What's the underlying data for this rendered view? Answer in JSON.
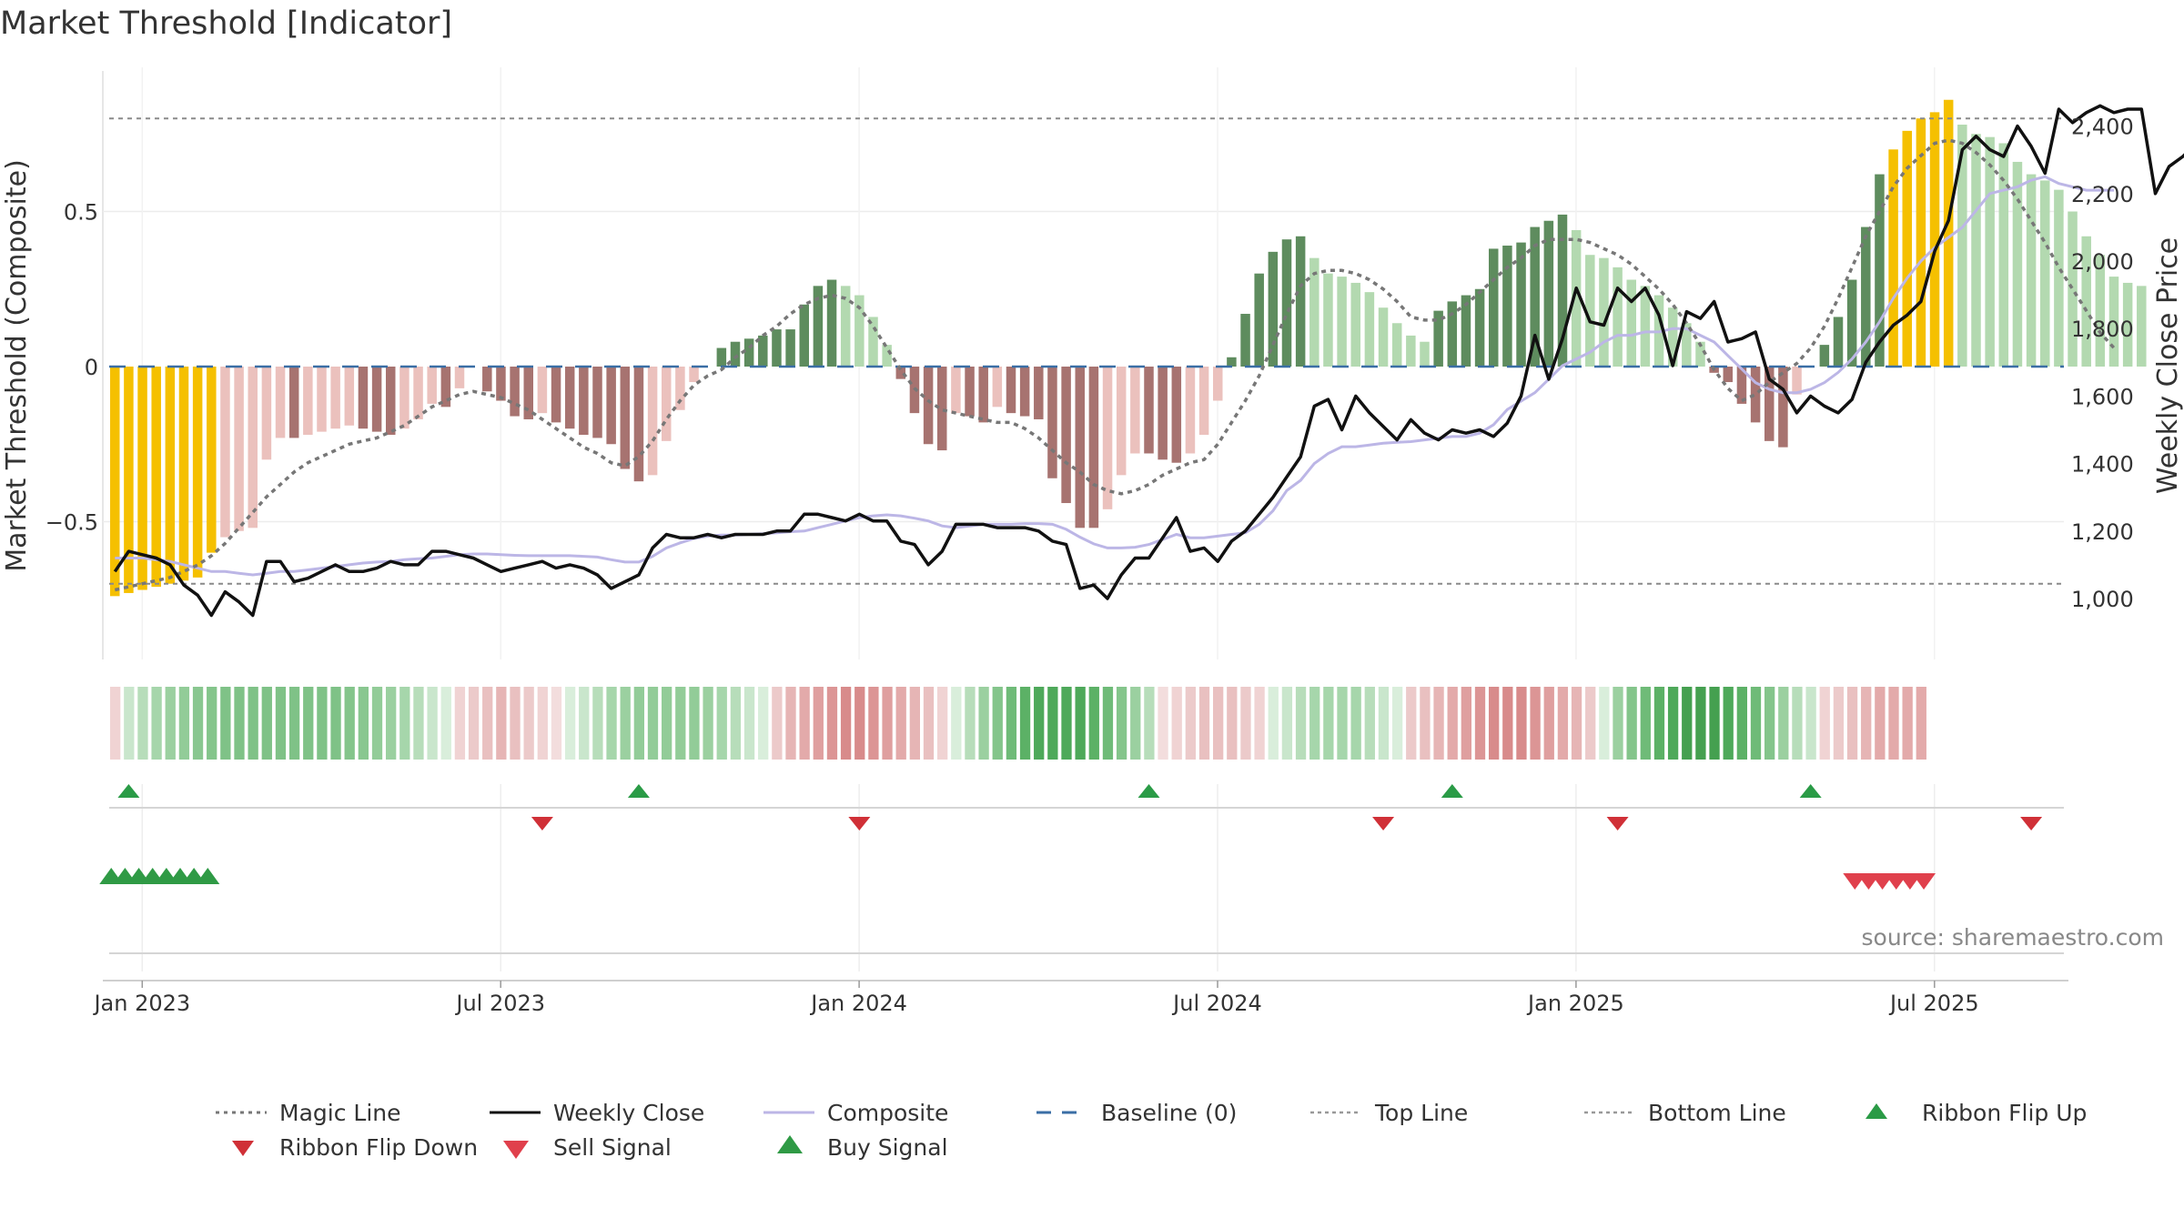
{
  "chart_data": {
    "type": "bar+line",
    "title": "Market Threshold [Indicator]",
    "left_axis": {
      "label": "Market Threshold (Composite)",
      "ticks": [
        "0.5",
        "0",
        "−0.5"
      ],
      "tick_values": [
        0.5,
        0,
        -0.5
      ],
      "range": [
        -0.95,
        0.95
      ]
    },
    "right_axis": {
      "label": "Weekly Close Price",
      "ticks": [
        "2,400",
        "2,200",
        "2,000",
        "1,800",
        "1,600",
        "1,400",
        "1,200",
        "1,000"
      ],
      "tick_values": [
        2400,
        2200,
        2000,
        1800,
        1600,
        1400,
        1200,
        1000
      ],
      "range": [
        840,
        2480
      ]
    },
    "x_ticks": [
      "Jan 2023",
      "Jul 2023",
      "Jan 2024",
      "Jul 2024",
      "Jan 2025",
      "Jul 2025"
    ],
    "x_tick_weeks": [
      2,
      28,
      54,
      80,
      106,
      132
    ],
    "lines": {
      "top": 0.8,
      "bottom": -0.7,
      "baseline": 0
    },
    "composite_bars": [
      -0.74,
      -0.73,
      -0.72,
      -0.71,
      -0.7,
      -0.69,
      -0.68,
      -0.6,
      -0.55,
      -0.53,
      -0.52,
      -0.3,
      -0.23,
      -0.23,
      -0.22,
      -0.21,
      -0.2,
      -0.19,
      -0.2,
      -0.21,
      -0.22,
      -0.2,
      -0.17,
      -0.12,
      -0.13,
      -0.07,
      0,
      -0.08,
      -0.11,
      -0.16,
      -0.17,
      -0.15,
      -0.18,
      -0.2,
      -0.22,
      -0.23,
      -0.25,
      -0.33,
      -0.37,
      -0.35,
      -0.24,
      -0.14,
      -0.05,
      0,
      0.06,
      0.08,
      0.09,
      0.1,
      0.12,
      0.12,
      0.2,
      0.26,
      0.28,
      0.26,
      0.23,
      0.16,
      0.07,
      -0.04,
      -0.15,
      -0.25,
      -0.27,
      -0.15,
      -0.16,
      -0.18,
      -0.13,
      -0.15,
      -0.16,
      -0.17,
      -0.36,
      -0.44,
      -0.52,
      -0.52,
      -0.46,
      -0.35,
      -0.28,
      -0.28,
      -0.3,
      -0.31,
      -0.28,
      -0.22,
      -0.11,
      0.03,
      0.17,
      0.3,
      0.37,
      0.41,
      0.42,
      0.35,
      0.3,
      0.29,
      0.27,
      0.24,
      0.19,
      0.14,
      0.1,
      0.08,
      0.18,
      0.21,
      0.23,
      0.25,
      0.38,
      0.39,
      0.4,
      0.45,
      0.47,
      0.49,
      0.44,
      0.36,
      0.35,
      0.32,
      0.28,
      0.26,
      0.23,
      0.19,
      0.14,
      0.08,
      -0.02,
      -0.05,
      -0.12,
      -0.18,
      -0.24,
      -0.26,
      -0.09,
      0,
      0.07,
      0.16,
      0.28,
      0.45,
      0.62,
      0.7,
      0.76,
      0.8,
      0.82,
      0.86,
      0.78,
      0.75,
      0.74,
      0.72,
      0.66,
      0.62,
      0.6,
      0.57,
      0.5,
      0.42,
      0.36,
      0.29,
      0.27,
      0.26
    ],
    "magic_line": [
      -0.72,
      -0.71,
      -0.7,
      -0.69,
      -0.68,
      -0.66,
      -0.64,
      -0.61,
      -0.57,
      -0.52,
      -0.47,
      -0.42,
      -0.38,
      -0.34,
      -0.31,
      -0.29,
      -0.27,
      -0.25,
      -0.24,
      -0.23,
      -0.21,
      -0.19,
      -0.16,
      -0.13,
      -0.11,
      -0.09,
      -0.08,
      -0.09,
      -0.1,
      -0.12,
      -0.14,
      -0.17,
      -0.2,
      -0.23,
      -0.26,
      -0.28,
      -0.31,
      -0.32,
      -0.29,
      -0.24,
      -0.17,
      -0.11,
      -0.06,
      -0.03,
      -0.01,
      0.03,
      0.06,
      0.1,
      0.13,
      0.17,
      0.2,
      0.22,
      0.23,
      0.22,
      0.19,
      0.13,
      0.06,
      -0.01,
      -0.07,
      -0.11,
      -0.14,
      -0.15,
      -0.16,
      -0.17,
      -0.18,
      -0.18,
      -0.2,
      -0.23,
      -0.27,
      -0.31,
      -0.34,
      -0.38,
      -0.4,
      -0.41,
      -0.4,
      -0.38,
      -0.35,
      -0.33,
      -0.31,
      -0.3,
      -0.25,
      -0.18,
      -0.11,
      -0.03,
      0.07,
      0.17,
      0.26,
      0.3,
      0.31,
      0.31,
      0.3,
      0.28,
      0.25,
      0.21,
      0.16,
      0.15,
      0.15,
      0.17,
      0.2,
      0.24,
      0.28,
      0.32,
      0.35,
      0.39,
      0.41,
      0.41,
      0.41,
      0.4,
      0.38,
      0.36,
      0.33,
      0.29,
      0.25,
      0.2,
      0.14,
      0.07,
      -0.01,
      -0.07,
      -0.11,
      -0.09,
      -0.05,
      -0.02,
      0.01,
      0.06,
      0.13,
      0.22,
      0.32,
      0.42,
      0.5,
      0.58,
      0.64,
      0.68,
      0.72,
      0.73,
      0.72,
      0.69,
      0.65,
      0.6,
      0.54,
      0.47,
      0.4,
      0.32,
      0.25,
      0.18,
      0.11,
      0.06
    ],
    "weekly_close": [
      1080,
      1140,
      1130,
      1120,
      1100,
      1040,
      1010,
      950,
      1020,
      990,
      950,
      1110,
      1110,
      1050,
      1060,
      1080,
      1100,
      1080,
      1080,
      1090,
      1110,
      1100,
      1100,
      1140,
      1140,
      1130,
      1120,
      1100,
      1080,
      1090,
      1100,
      1110,
      1090,
      1100,
      1090,
      1070,
      1030,
      1050,
      1070,
      1150,
      1190,
      1180,
      1180,
      1190,
      1180,
      1190,
      1190,
      1190,
      1200,
      1200,
      1250,
      1250,
      1240,
      1230,
      1250,
      1230,
      1230,
      1170,
      1160,
      1100,
      1140,
      1220,
      1220,
      1220,
      1210,
      1210,
      1210,
      1200,
      1170,
      1160,
      1030,
      1040,
      1000,
      1070,
      1120,
      1120,
      1180,
      1240,
      1140,
      1150,
      1110,
      1170,
      1200,
      1250,
      1300,
      1360,
      1420,
      1570,
      1590,
      1500,
      1600,
      1550,
      1510,
      1470,
      1530,
      1490,
      1470,
      1500,
      1490,
      1500,
      1480,
      1520,
      1600,
      1780,
      1650,
      1770,
      1920,
      1820,
      1810,
      1920,
      1880,
      1920,
      1840,
      1690,
      1850,
      1830,
      1880,
      1760,
      1770,
      1790,
      1650,
      1620,
      1550,
      1600,
      1570,
      1550,
      1590,
      1700,
      1760,
      1810,
      1840,
      1880,
      2030,
      2120,
      2330,
      2370,
      2330,
      2310,
      2400,
      2340,
      2260,
      2450,
      2410,
      2440,
      2460,
      2440,
      2450,
      2450,
      2200,
      2280,
      2310,
      2350
    ],
    "composite_line": [
      1120,
      1120,
      1120,
      1115,
      1110,
      1100,
      1090,
      1080,
      1080,
      1075,
      1070,
      1075,
      1080,
      1080,
      1085,
      1090,
      1095,
      1100,
      1105,
      1108,
      1110,
      1115,
      1118,
      1120,
      1125,
      1130,
      1132,
      1132,
      1130,
      1128,
      1127,
      1127,
      1127,
      1127,
      1125,
      1123,
      1115,
      1108,
      1108,
      1125,
      1150,
      1165,
      1178,
      1185,
      1188,
      1188,
      1190,
      1192,
      1195,
      1198,
      1200,
      1210,
      1220,
      1230,
      1240,
      1245,
      1248,
      1245,
      1238,
      1230,
      1215,
      1210,
      1215,
      1220,
      1220,
      1220,
      1222,
      1222,
      1220,
      1205,
      1182,
      1162,
      1150,
      1150,
      1152,
      1160,
      1175,
      1190,
      1180,
      1180,
      1185,
      1190,
      1195,
      1220,
      1260,
      1320,
      1350,
      1400,
      1430,
      1450,
      1450,
      1455,
      1460,
      1463,
      1465,
      1470,
      1475,
      1480,
      1480,
      1490,
      1515,
      1560,
      1585,
      1610,
      1650,
      1690,
      1710,
      1730,
      1760,
      1780,
      1780,
      1790,
      1790,
      1800,
      1800,
      1780,
      1760,
      1720,
      1680,
      1640,
      1620,
      1610,
      1610,
      1620,
      1640,
      1670,
      1710,
      1760,
      1820,
      1890,
      1950,
      2000,
      2040,
      2070,
      2100,
      2150,
      2200,
      2210,
      2220,
      2240,
      2250,
      2230,
      2220,
      2210,
      2210,
      2210
    ],
    "ribbon_colors": [
      "#f0d3d3",
      "#c9e6cc",
      "#b7ddba",
      "#a6d6ab",
      "#9bd0a0",
      "#92cc98",
      "#89c790",
      "#84c58b",
      "#7fc287",
      "#7fc287",
      "#7fc287",
      "#7fc287",
      "#7fc287",
      "#7fc287",
      "#7fc287",
      "#7fc287",
      "#7fc287",
      "#84c58b",
      "#89c790",
      "#92cc98",
      "#9bd0a0",
      "#a6d6ab",
      "#b7ddba",
      "#c9e6cc",
      "#d9eedb",
      "#f0d3d3",
      "#eccaca",
      "#e9c0c0",
      "#e6b5b5",
      "#e9c0c0",
      "#eccaca",
      "#f0d3d3",
      "#f3dddd",
      "#d9eedb",
      "#c9e6cc",
      "#b7ddba",
      "#a6d6ab",
      "#9bd0a0",
      "#92cc98",
      "#92cc98",
      "#92cc98",
      "#92cc98",
      "#92cc98",
      "#9bd0a0",
      "#a6d6ab",
      "#b7ddba",
      "#c9e6cc",
      "#d9eedb",
      "#eccaca",
      "#e6b5b5",
      "#e3aaaa",
      "#df9f9f",
      "#dc9595",
      "#d88b8b",
      "#d88b8b",
      "#dc9595",
      "#df9f9f",
      "#e3aaaa",
      "#e6b5b5",
      "#e9c0c0",
      "#f0d3d3",
      "#d9eedb",
      "#b7ddba",
      "#9bd0a0",
      "#84c58b",
      "#6fbb78",
      "#5cb166",
      "#4ea95a",
      "#4ea95a",
      "#4ea95a",
      "#4ea95a",
      "#5cb166",
      "#6fbb78",
      "#84c58b",
      "#9bd0a0",
      "#b7ddba",
      "#f3dddd",
      "#f0d3d3",
      "#eccaca",
      "#e9c0c0",
      "#e9c0c0",
      "#e9c0c0",
      "#eccaca",
      "#f0d3d3",
      "#d9eedb",
      "#c9e6cc",
      "#b7ddba",
      "#a6d6ab",
      "#a6d6ab",
      "#a6d6ab",
      "#a6d6ab",
      "#b7ddba",
      "#c9e6cc",
      "#d9eedb",
      "#eccaca",
      "#e9c0c0",
      "#e6b5b5",
      "#e3aaaa",
      "#df9f9f",
      "#dc9595",
      "#d88b8b",
      "#d88b8b",
      "#d88b8b",
      "#dc9595",
      "#df9f9f",
      "#e3aaaa",
      "#e6b5b5",
      "#eccaca",
      "#d9eedb",
      "#9bd0a0",
      "#84c58b",
      "#6fbb78",
      "#5cb166",
      "#4ea95a",
      "#45a050",
      "#45a050",
      "#45a050",
      "#4ea95a",
      "#5cb166",
      "#6fbb78",
      "#84c58b",
      "#9bd0a0",
      "#b7ddba",
      "#c9e6cc",
      "#f0d3d3",
      "#eccaca",
      "#e9c0c0",
      "#e6b5b5",
      "#e3aaaa",
      "#e3aaaa",
      "#e3aaaa",
      "#e3aaaa"
    ],
    "ribbon_flip_up": [
      1,
      38,
      75,
      97,
      123
    ],
    "ribbon_flip_down": [
      31,
      54,
      92,
      109,
      139
    ],
    "buy_signals": [
      0,
      1,
      2,
      3,
      4,
      5,
      6,
      7
    ],
    "sell_signals": [
      127,
      128,
      129,
      130,
      131,
      132
    ],
    "colors": {
      "extreme": "#f5c000",
      "pos_strong": "#5e8c5e",
      "pos_fade": "#b3d9b0",
      "neg_strong": "#a77370",
      "neg_fade": "#ebc1bd",
      "magic": "#777777",
      "close": "#111111",
      "composite": "#bcb6e6",
      "baseline": "#3a6ea5",
      "flip_up": "#2a9b46",
      "flip_down": "#d03037",
      "sell": "#e0404c",
      "buy": "#2f9a45"
    }
  },
  "legend": {
    "row1": [
      "Magic Line",
      "Weekly Close",
      "Composite",
      "Baseline (0)",
      "Top Line",
      "Bottom Line",
      "Ribbon Flip Up"
    ],
    "row2": [
      "Ribbon Flip Down",
      "Sell Signal",
      "Buy Signal"
    ]
  },
  "source": "source: sharemaestro.com"
}
